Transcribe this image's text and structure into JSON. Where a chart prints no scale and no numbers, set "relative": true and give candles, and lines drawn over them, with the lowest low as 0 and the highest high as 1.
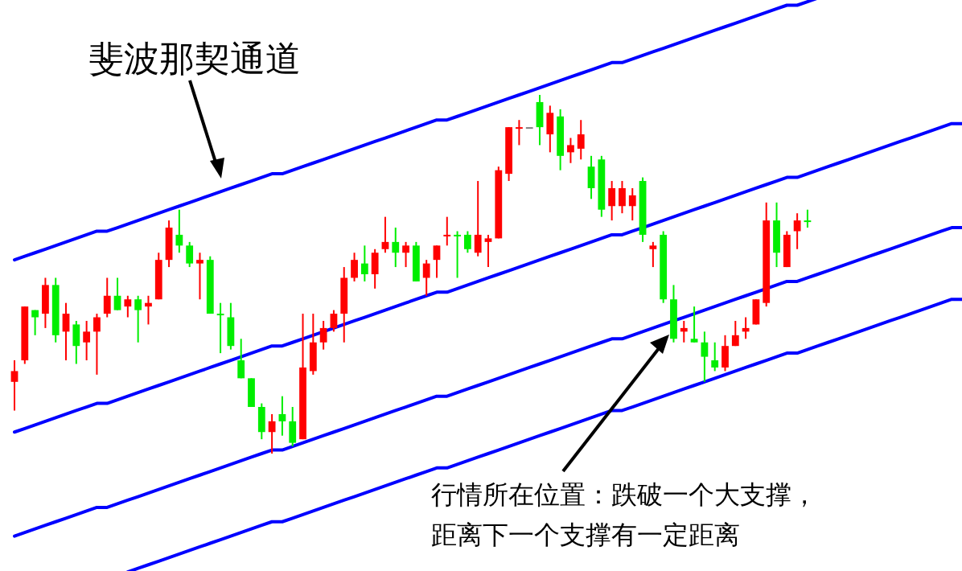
{
  "chart_data": {
    "type": "candlestick",
    "relative": true,
    "categories": [
      null,
      null,
      null,
      null,
      null,
      null,
      null,
      null,
      null,
      null,
      null,
      null,
      null,
      null,
      null,
      null,
      null,
      null,
      null,
      null,
      null,
      null,
      null,
      null,
      null,
      null,
      null,
      null,
      null,
      null,
      null,
      null,
      null,
      null,
      null,
      null,
      null,
      null,
      null,
      null,
      null,
      null,
      null,
      null,
      null,
      null,
      null,
      null,
      null,
      null,
      null,
      null,
      null,
      null,
      null,
      null,
      null,
      null,
      null,
      null,
      null,
      null,
      null,
      null,
      null,
      null,
      null,
      null,
      null,
      null,
      null,
      null,
      null,
      null,
      null,
      null,
      null,
      null,
      null,
      null,
      null,
      null,
      null,
      null,
      null,
      null,
      null,
      null,
      null,
      null,
      null,
      null,
      null
    ],
    "ohlc": [
      [
        0.2,
        0.26,
        0.12,
        0.23
      ],
      [
        0.26,
        0.41,
        0.25,
        0.41
      ],
      [
        0.4,
        0.4,
        0.33,
        0.38
      ],
      [
        0.39,
        0.49,
        0.35,
        0.47
      ],
      [
        0.47,
        0.49,
        0.31,
        0.33
      ],
      [
        0.34,
        0.42,
        0.26,
        0.39
      ],
      [
        0.36,
        0.37,
        0.25,
        0.3
      ],
      [
        0.31,
        0.37,
        0.26,
        0.34
      ],
      [
        0.34,
        0.39,
        0.22,
        0.38
      ],
      [
        0.39,
        0.49,
        0.38,
        0.44
      ],
      [
        0.44,
        0.49,
        0.4,
        0.4
      ],
      [
        0.41,
        0.44,
        0.38,
        0.43
      ],
      [
        0.43,
        0.44,
        0.31,
        0.4
      ],
      [
        0.41,
        0.44,
        0.36,
        0.42
      ],
      [
        0.43,
        0.56,
        0.43,
        0.54
      ],
      [
        0.54,
        0.65,
        0.52,
        0.63
      ],
      [
        0.61,
        0.68,
        0.56,
        0.58
      ],
      [
        0.58,
        0.59,
        0.52,
        0.53
      ],
      [
        0.53,
        0.56,
        0.43,
        0.54
      ],
      [
        0.54,
        0.55,
        0.39,
        0.39
      ],
      [
        0.39,
        0.42,
        0.28,
        0.39
      ],
      [
        0.38,
        0.42,
        0.29,
        0.3
      ],
      [
        0.26,
        0.32,
        0.21,
        0.21
      ],
      [
        0.21,
        0.21,
        0.13,
        0.13
      ],
      [
        0.13,
        0.14,
        0.04,
        0.06
      ],
      [
        0.06,
        0.11,
        0,
        0.09
      ],
      [
        0.11,
        0.16,
        0.05,
        0.09
      ],
      [
        0.09,
        0.13,
        0.02,
        0.03
      ],
      [
        0.04,
        0.39,
        0.04,
        0.24
      ],
      [
        0.23,
        0.39,
        0.22,
        0.31
      ],
      [
        0.31,
        0.37,
        0.29,
        0.35
      ],
      [
        0.35,
        0.4,
        0.34,
        0.39
      ],
      [
        0.39,
        0.52,
        0.31,
        0.49
      ],
      [
        0.49,
        0.56,
        0.48,
        0.54
      ],
      [
        0.53,
        0.58,
        0.48,
        0.5
      ],
      [
        0.5,
        0.57,
        0.46,
        0.56
      ],
      [
        0.57,
        0.66,
        0.56,
        0.59
      ],
      [
        0.59,
        0.63,
        0.52,
        0.56
      ],
      [
        0.56,
        0.59,
        0.52,
        0.58
      ],
      [
        0.58,
        0.59,
        0.48,
        0.48
      ],
      [
        0.49,
        0.54,
        0.44,
        0.53
      ],
      [
        0.54,
        0.58,
        0.49,
        0.58
      ],
      [
        0.61,
        0.66,
        0.58,
        0.61
      ],
      [
        0.61,
        0.62,
        0.49,
        0.61
      ],
      [
        0.61,
        0.62,
        0.56,
        0.57
      ],
      [
        0.56,
        0.76,
        0.55,
        0.61
      ],
      [
        0.59,
        0.61,
        0.52,
        0.6
      ],
      [
        0.6,
        0.8,
        0.6,
        0.79
      ],
      [
        0.78,
        0.91,
        0.76,
        0.91
      ],
      [
        0.91,
        0.93,
        0.86,
        0.91
      ],
      [
        0.91,
        0.91,
        0.91,
        0.91
      ],
      [
        0.98,
        1,
        0.86,
        0.91
      ],
      [
        0.89,
        0.97,
        0.84,
        0.95
      ],
      [
        0.94,
        0.96,
        0.79,
        0.83
      ],
      [
        0.84,
        0.88,
        0.81,
        0.86
      ],
      [
        0.85,
        0.93,
        0.82,
        0.89
      ],
      [
        0.8,
        0.83,
        0.71,
        0.74
      ],
      [
        0.82,
        0.83,
        0.66,
        0.68
      ],
      [
        0.69,
        0.76,
        0.65,
        0.74
      ],
      [
        0.69,
        0.76,
        0.67,
        0.74
      ],
      [
        0.69,
        0.74,
        0.65,
        0.72
      ],
      [
        0.76,
        0.77,
        0.59,
        0.61
      ],
      [
        0.57,
        0.59,
        0.52,
        0.58
      ],
      [
        0.61,
        0.62,
        0.42,
        0.43
      ],
      [
        0.43,
        0.47,
        0.31,
        0.32
      ],
      [
        0.34,
        0.37,
        0.31,
        0.35
      ],
      [
        0.32,
        0.41,
        0.31,
        0.31
      ],
      [
        0.31,
        0.34,
        0.2,
        0.27
      ],
      [
        0.26,
        0.31,
        0.23,
        0.24
      ],
      [
        0.24,
        0.33,
        0.23,
        0.3
      ],
      [
        0.3,
        0.37,
        0.3,
        0.33
      ],
      [
        0.34,
        0.38,
        0.32,
        0.35
      ],
      [
        0.36,
        0.43,
        0.36,
        0.43
      ],
      [
        0.42,
        0.7,
        0.41,
        0.65
      ],
      [
        0.65,
        0.7,
        0.52,
        0.56
      ],
      [
        0.52,
        0.62,
        0.52,
        0.61
      ],
      [
        0.62,
        0.67,
        0.57,
        0.65
      ],
      [
        0.65,
        0.68,
        0.63,
        0.65
      ],
      null,
      null,
      null,
      null,
      null,
      null,
      null,
      null,
      null,
      null,
      null,
      null,
      null,
      null,
      null
    ],
    "colors": [
      "#ff0000",
      "#ff0000",
      "#00ee00",
      "#ff0000",
      "#00ee00",
      "#ff0000",
      "#00ee00",
      "#ff0000",
      "#ff0000",
      "#ff0000",
      "#00ee00",
      "#ff0000",
      "#00ee00",
      "#ff0000",
      "#ff0000",
      "#ff0000",
      "#00ee00",
      "#00ee00",
      "#ff0000",
      "#00ee00",
      "#00ee00",
      "#00ee00",
      "#00ee00",
      "#00ee00",
      "#00ee00",
      "#ff0000",
      "#00ee00",
      "#00ee00",
      "#ff0000",
      "#ff0000",
      "#ff0000",
      "#ff0000",
      "#ff0000",
      "#ff0000",
      "#00ee00",
      "#ff0000",
      "#ff0000",
      "#00ee00",
      "#ff0000",
      "#00ee00",
      "#ff0000",
      "#ff0000",
      "#ff0000",
      "#00ee00",
      "#00ee00",
      "#ff0000",
      "#ff0000",
      "#ff0000",
      "#ff0000",
      "#ff0000",
      "#808080",
      "#00ee00",
      "#ff0000",
      "#00ee00",
      "#ff0000",
      "#ff0000",
      "#00ee00",
      "#00ee00",
      "#ff0000",
      "#ff0000",
      "#ff0000",
      "#00ee00",
      "#ff0000",
      "#00ee00",
      "#00ee00",
      "#ff0000",
      "#00ee00",
      "#00ee00",
      "#00ee00",
      "#ff0000",
      "#ff0000",
      "#ff0000",
      "#ff0000",
      "#ff0000",
      "#00ee00",
      "#ff0000",
      "#ff0000",
      "#00ee00",
      null,
      null,
      null,
      null,
      null,
      null,
      null,
      null,
      null,
      null,
      null,
      null,
      null,
      null,
      null
    ],
    "series": [
      {
        "type": "line",
        "color": "#0000ff",
        "values": [
          0.54,
          0.55,
          0.56,
          0.57,
          0.58,
          0.59,
          0.6,
          0.61,
          0.62,
          0.62,
          0.63,
          0.64,
          0.65,
          0.66,
          0.67,
          0.68,
          0.69,
          0.7,
          0.71,
          0.72,
          0.73,
          0.74,
          0.75,
          0.76,
          0.77,
          0.78,
          0.78,
          0.79,
          0.8,
          0.81,
          0.82,
          0.83,
          0.84,
          0.85,
          0.86,
          0.87,
          0.88,
          0.89,
          0.9,
          0.91,
          0.92,
          0.93,
          0.93,
          0.94,
          0.95,
          0.96,
          0.97,
          0.98,
          0.99,
          1.0,
          1.01,
          1.02,
          1.03,
          1.04,
          1.05,
          1.06,
          1.07,
          1.08,
          1.09,
          1.09,
          1.1,
          1.11,
          1.12,
          1.13,
          1.14,
          1.15,
          1.16,
          1.17,
          1.18,
          1.19,
          1.2,
          1.21,
          1.22,
          1.23,
          1.24,
          1.25,
          1.25,
          1.26,
          1.27,
          null,
          null,
          null,
          null,
          null,
          null,
          null,
          null,
          null,
          null,
          null,
          null,
          null,
          null
        ]
      },
      {
        "type": "line",
        "color": "#0000ff",
        "values": [
          0.06,
          0.07,
          0.08,
          0.09,
          0.1,
          0.11,
          0.12,
          0.13,
          0.14,
          0.14,
          0.15,
          0.16,
          0.17,
          0.18,
          0.19,
          0.2,
          0.21,
          0.22,
          0.23,
          0.24,
          0.25,
          0.26,
          0.27,
          0.28,
          0.29,
          0.3,
          0.3,
          0.31,
          0.32,
          0.33,
          0.34,
          0.35,
          0.36,
          0.37,
          0.38,
          0.39,
          0.4,
          0.41,
          0.42,
          0.43,
          0.44,
          0.45,
          0.45,
          0.46,
          0.47,
          0.48,
          0.49,
          0.5,
          0.51,
          0.52,
          0.53,
          0.54,
          0.55,
          0.56,
          0.57,
          0.58,
          0.59,
          0.6,
          0.61,
          0.61,
          0.62,
          0.63,
          0.64,
          0.65,
          0.66,
          0.67,
          0.68,
          0.69,
          0.7,
          0.71,
          0.72,
          0.73,
          0.74,
          0.75,
          0.76,
          0.77,
          0.77,
          0.78,
          0.79,
          0.8,
          0.81,
          0.82,
          0.83,
          0.84,
          0.85,
          0.86,
          0.87,
          0.88,
          0.89,
          0.9,
          0.91,
          0.92,
          0.92
        ]
      },
      {
        "type": "line",
        "color": "#0000ff",
        "values": [
          -0.23,
          -0.22,
          -0.21,
          -0.2,
          -0.19,
          -0.18,
          -0.17,
          -0.16,
          -0.15,
          -0.15,
          -0.14,
          -0.13,
          -0.12,
          -0.11,
          -0.1,
          -0.09,
          -0.08,
          -0.07,
          -0.06,
          -0.05,
          -0.04,
          -0.03,
          -0.02,
          -0.01,
          0,
          0.01,
          0.01,
          0.02,
          0.03,
          0.04,
          0.05,
          0.06,
          0.07,
          0.08,
          0.09,
          0.1,
          0.11,
          0.12,
          0.13,
          0.14,
          0.15,
          0.16,
          0.16,
          0.17,
          0.18,
          0.19,
          0.2,
          0.21,
          0.22,
          0.23,
          0.24,
          0.25,
          0.26,
          0.27,
          0.28,
          0.29,
          0.3,
          0.31,
          0.32,
          0.32,
          0.33,
          0.34,
          0.35,
          0.36,
          0.37,
          0.38,
          0.39,
          0.4,
          0.41,
          0.42,
          0.43,
          0.44,
          0.45,
          0.46,
          0.47,
          0.48,
          0.48,
          0.49,
          0.5,
          0.51,
          0.52,
          0.53,
          0.54,
          0.55,
          0.56,
          0.57,
          0.58,
          0.59,
          0.6,
          0.61,
          0.62,
          0.63,
          0.63
        ]
      },
      {
        "type": "line",
        "color": "#0000ff",
        "values": [
          null,
          null,
          null,
          null,
          null,
          null,
          null,
          null,
          null,
          null,
          null,
          -0.33,
          -0.32,
          -0.31,
          -0.3,
          -0.29,
          -0.28,
          -0.27,
          -0.26,
          -0.25,
          -0.24,
          -0.23,
          -0.22,
          -0.21,
          -0.2,
          -0.19,
          -0.19,
          -0.18,
          -0.17,
          -0.16,
          -0.15,
          -0.14,
          -0.13,
          -0.12,
          -0.11,
          -0.1,
          -0.09,
          -0.08,
          -0.07,
          -0.06,
          -0.05,
          -0.04,
          -0.04,
          -0.03,
          -0.02,
          -0.01,
          0,
          0.01,
          0.02,
          0.03,
          0.04,
          0.05,
          0.06,
          0.07,
          0.08,
          0.09,
          0.1,
          0.11,
          0.12,
          0.12,
          0.13,
          0.14,
          0.15,
          0.16,
          0.17,
          0.18,
          0.19,
          0.2,
          0.21,
          0.22,
          0.23,
          0.24,
          0.25,
          0.26,
          0.27,
          0.28,
          0.28,
          0.29,
          0.3,
          0.31,
          0.32,
          0.33,
          0.34,
          0.35,
          0.36,
          0.37,
          0.38,
          0.39,
          0.4,
          0.41,
          0.42,
          0.43,
          0.43
        ]
      }
    ],
    "annotations": [
      "斐波那契通道",
      "行情所在位置：跌破一个大支撑，距离下一个支撑有一定距离"
    ]
  }
}
